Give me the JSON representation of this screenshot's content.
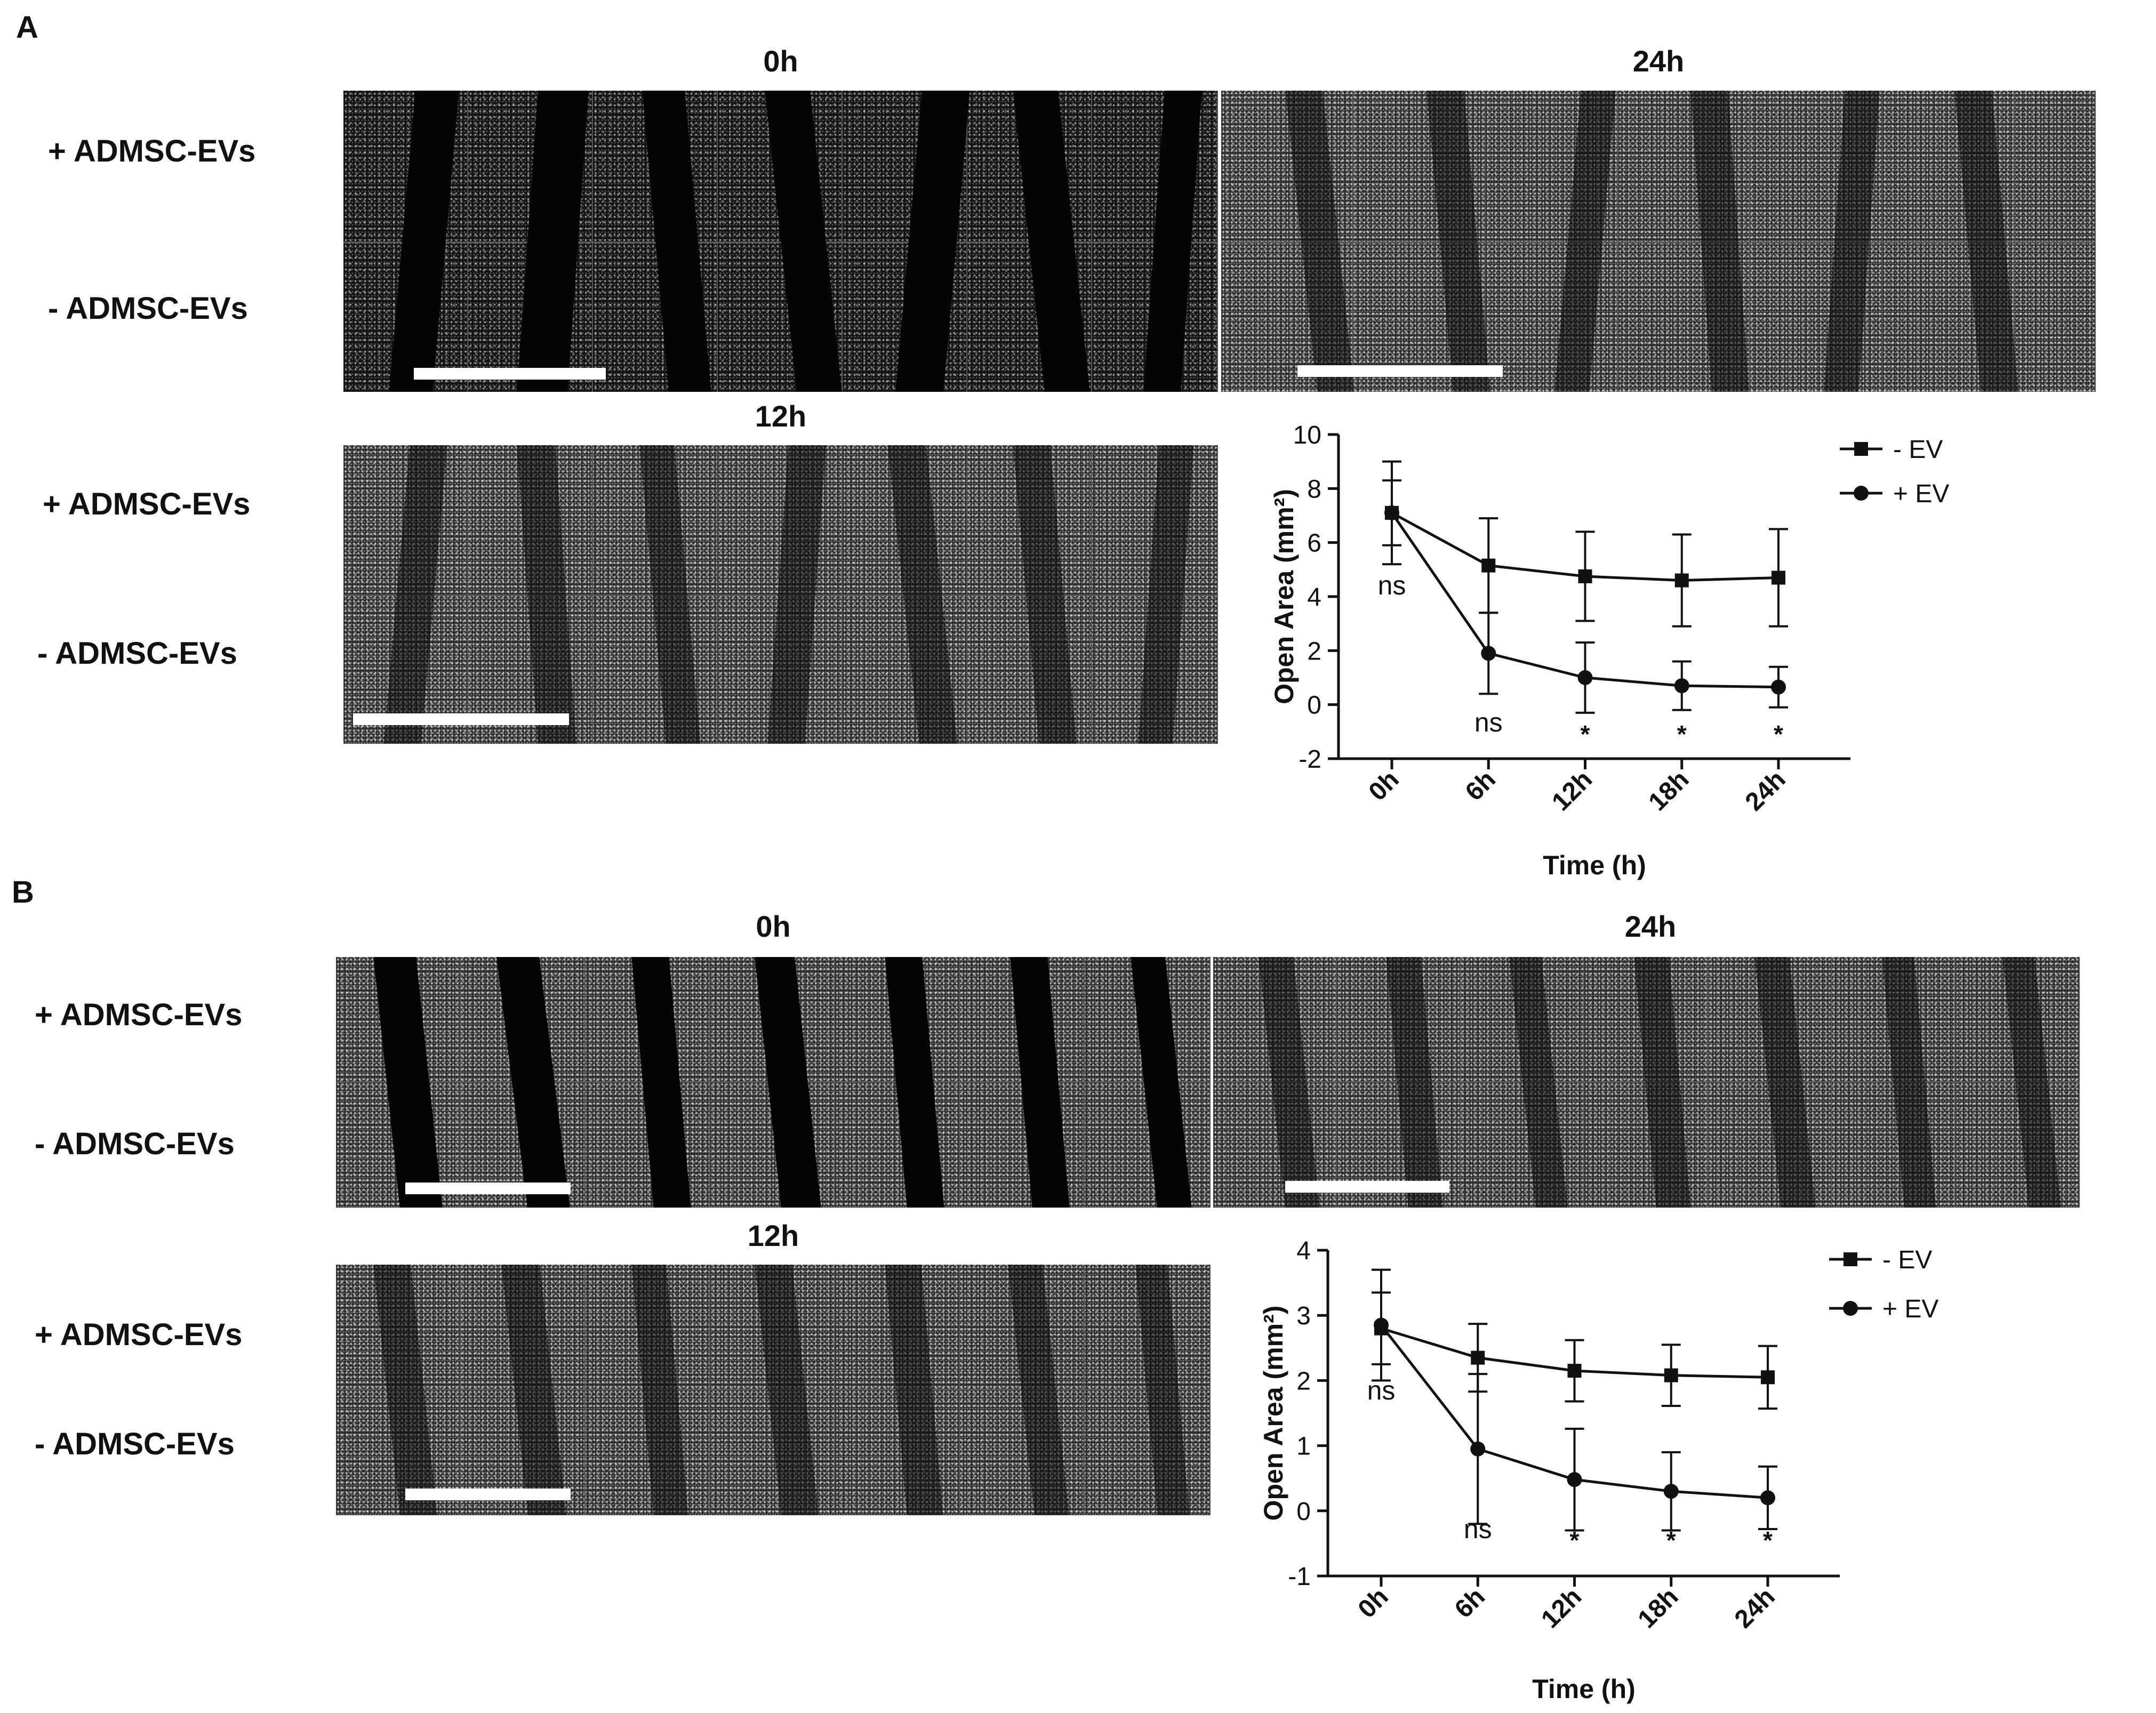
{
  "panels": [
    {
      "letter": "A",
      "micrographs": [
        {
          "time": "0h",
          "rows": [
            "+ ADMSC-EVs",
            "- ADMSC-EVs"
          ],
          "tiles": 7,
          "gap_level": "wide"
        },
        {
          "time": "24h",
          "rows": [],
          "tiles": 6,
          "gap_level": "faint"
        },
        {
          "time": "12h",
          "rows": [
            "+ ADMSC-EVs",
            "- ADMSC-EVs"
          ],
          "tiles": 7,
          "gap_level": "faint"
        }
      ]
    },
    {
      "letter": "B",
      "micrographs": [
        {
          "time": "0h",
          "rows": [
            "+ ADMSC-EVs",
            "- ADMSC-EVs"
          ],
          "tiles": 7,
          "gap_level": "medium"
        },
        {
          "time": "24h",
          "rows": [],
          "tiles": 7,
          "gap_level": "faint"
        },
        {
          "time": "12h",
          "rows": [
            "+ ADMSC-EVs",
            "- ADMSC-EVs"
          ],
          "tiles": 7,
          "gap_level": "faint"
        }
      ]
    }
  ],
  "chart_data": [
    {
      "type": "line",
      "x": [
        "0h",
        "6h",
        "12h",
        "18h",
        "24h"
      ],
      "xlabel": "Time (h)",
      "ylabel": "Open Area (mm²)",
      "ylim": [
        -2,
        10
      ],
      "yticks": [
        -2,
        0,
        2,
        4,
        6,
        8,
        10
      ],
      "legend": "top-right",
      "series": [
        {
          "name": "- EV",
          "marker": "square",
          "values": [
            7.1,
            5.15,
            4.75,
            4.6,
            4.7
          ],
          "errors": [
            1.2,
            1.75,
            1.65,
            1.7,
            1.8
          ]
        },
        {
          "name": "+ EV",
          "marker": "circle",
          "values": [
            7.1,
            1.9,
            1.0,
            0.7,
            0.65
          ],
          "errors": [
            1.9,
            1.5,
            1.3,
            0.9,
            0.75
          ]
        }
      ],
      "annotations": [
        {
          "x": "0h",
          "text": "ns"
        },
        {
          "x": "6h",
          "text": "ns"
        },
        {
          "x": "12h",
          "text": "*"
        },
        {
          "x": "18h",
          "text": "*"
        },
        {
          "x": "24h",
          "text": "*"
        }
      ]
    },
    {
      "type": "line",
      "x": [
        "0h",
        "6h",
        "12h",
        "18h",
        "24h"
      ],
      "xlabel": "Time (h)",
      "ylabel": "Open Area (mm²)",
      "ylim": [
        -1,
        4
      ],
      "yticks": [
        -1,
        0,
        1,
        2,
        3,
        4
      ],
      "legend": "top-right",
      "series": [
        {
          "name": "- EV",
          "marker": "square",
          "values": [
            2.8,
            2.35,
            2.15,
            2.08,
            2.05
          ],
          "errors": [
            0.55,
            0.52,
            0.47,
            0.47,
            0.48
          ]
        },
        {
          "name": "+ EV",
          "marker": "circle",
          "values": [
            2.85,
            0.95,
            0.48,
            0.3,
            0.2
          ],
          "errors": [
            0.85,
            1.15,
            0.78,
            0.6,
            0.48
          ]
        }
      ],
      "annotations": [
        {
          "x": "0h",
          "text": "ns"
        },
        {
          "x": "6h",
          "text": "ns"
        },
        {
          "x": "12h",
          "text": "*"
        },
        {
          "x": "18h",
          "text": "*"
        },
        {
          "x": "24h",
          "text": "*"
        }
      ]
    }
  ]
}
